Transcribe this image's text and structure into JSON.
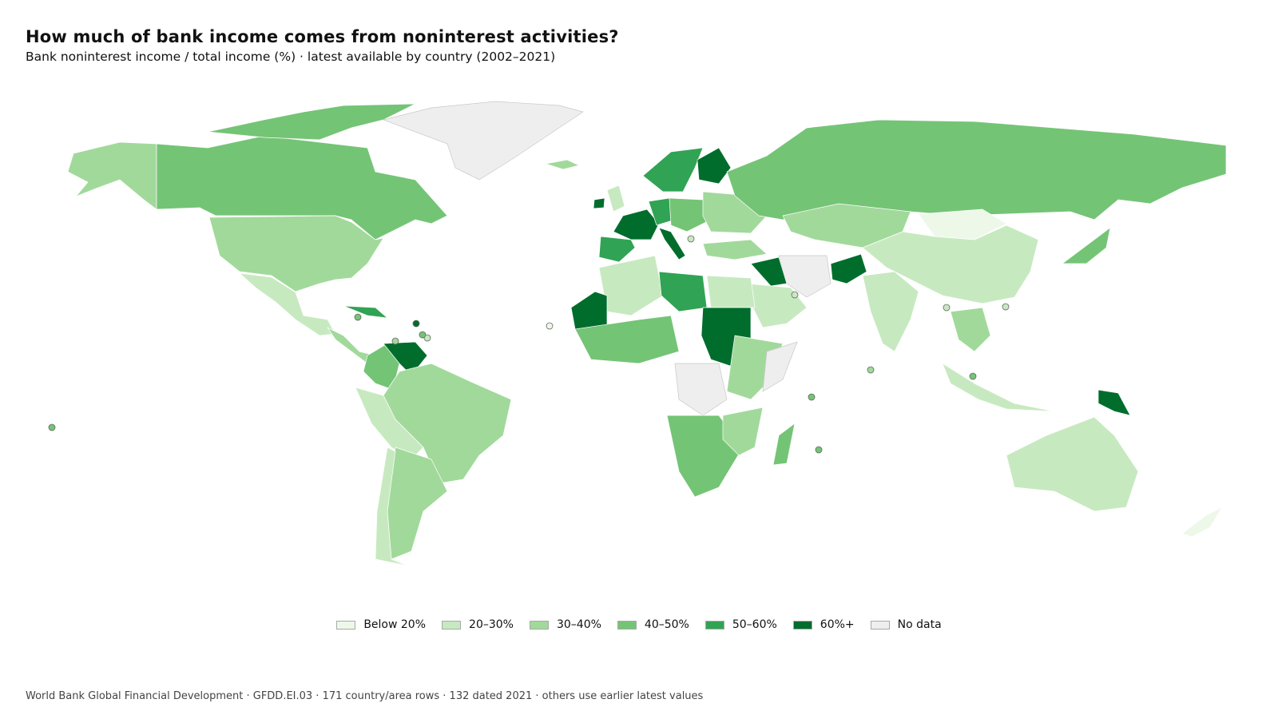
{
  "title": "How much of bank income comes from noninterest activities?",
  "subtitle": "Bank noninterest income / total income (%) · latest available by country (2002–2021)",
  "footer": "World Bank Global Financial Development · GFDD.EI.03 · 171 country/area rows · 132 dated 2021 · others use earlier latest values",
  "colors": {
    "below_20": "#edf8e9",
    "20_30": "#c7e9c0",
    "30_40": "#a1d99b",
    "40_50": "#74c476",
    "50_60": "#31a354",
    "60_plus": "#006d2c",
    "no_data": "#eeeeee"
  },
  "legend": [
    {
      "label": "Below 20%",
      "bin": "below_20"
    },
    {
      "label": "20–30%",
      "bin": "20_30"
    },
    {
      "label": "30–40%",
      "bin": "30_40"
    },
    {
      "label": "40–50%",
      "bin": "40_50"
    },
    {
      "label": "50–60%",
      "bin": "50_60"
    },
    {
      "label": "60%+",
      "bin": "60_plus"
    },
    {
      "label": "No data",
      "bin": "no_data"
    }
  ]
}
